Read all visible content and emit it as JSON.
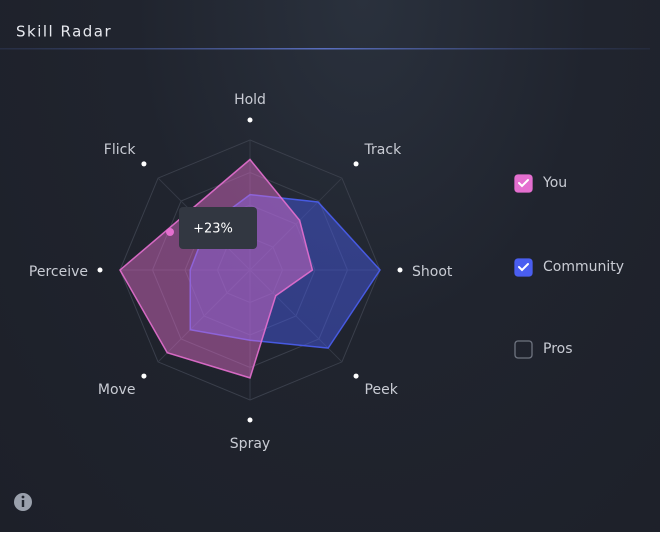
{
  "header": {
    "title": "Skill Radar"
  },
  "chart_data": {
    "type": "radar",
    "categories": [
      "Hold",
      "Track",
      "Shoot",
      "Peek",
      "Spray",
      "Move",
      "Perceive",
      "Flick"
    ],
    "rlim": [
      0,
      100
    ],
    "rticks": [
      25,
      50,
      75,
      100
    ],
    "series": [
      {
        "name": "You",
        "color": "#e46fcf",
        "checked": true,
        "values": [
          85,
          54,
          48,
          28,
          83,
          90,
          100,
          65
        ]
      },
      {
        "name": "Community",
        "color": "#4a5ef0",
        "checked": true,
        "values": [
          58,
          74,
          100,
          85,
          54,
          65,
          46,
          47
        ]
      },
      {
        "name": "Pros",
        "color": "#8a8f9c",
        "checked": false,
        "values": [
          null,
          null,
          null,
          null,
          null,
          null,
          null,
          null
        ]
      }
    ]
  },
  "tooltip": {
    "text": "+23%"
  }
}
